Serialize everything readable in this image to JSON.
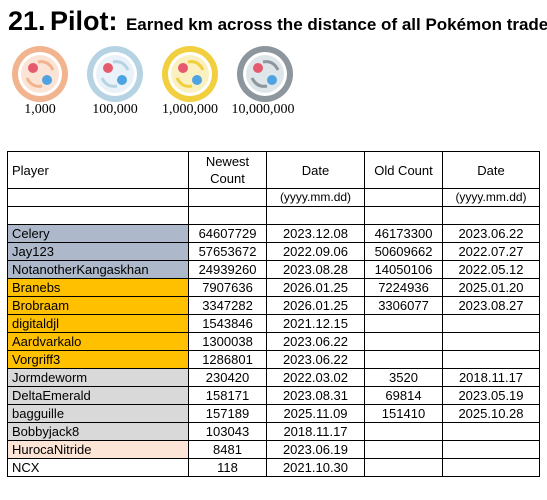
{
  "header": {
    "number": "21.",
    "name": "Pilot:",
    "description": "Earned km across the distance of all Pokémon trades"
  },
  "medals": [
    {
      "tier": "bronze-medal-icon",
      "label": "1,000",
      "ring": "#f2b48e",
      "inner": "#fbe4d6"
    },
    {
      "tier": "silver-medal-icon",
      "label": "100,000",
      "ring": "#b6d3e4",
      "inner": "#e8f2f8"
    },
    {
      "tier": "gold-medal-icon",
      "label": "1,000,000",
      "ring": "#f2cf3e",
      "inner": "#fbf0c0"
    },
    {
      "tier": "platinum-medal-icon",
      "label": "10,000,000",
      "ring": "#8c969c",
      "inner": "#dfe6ea"
    }
  ],
  "table": {
    "headers": {
      "player": "Player",
      "newest_count": "Newest Count",
      "date1": "Date",
      "old_count": "Old Count",
      "date2": "Date"
    },
    "format_hint_1": "(yyyy.mm.dd)",
    "format_hint_2": "(yyyy.mm.dd)",
    "colors": {
      "platinum": "#adb9ca",
      "gold": "#ffc000",
      "silver": "#d9d9d9",
      "bronze": "#fce4d6",
      "none": "#ffffff"
    },
    "rows": [
      {
        "player": "Celery",
        "newest": "64607729",
        "date1": "2023.12.08",
        "old": "46173300",
        "date2": "2023.06.22",
        "tier": "platinum"
      },
      {
        "player": "Jay123",
        "newest": "57653672",
        "date1": "2022.09.06",
        "old": "50609662",
        "date2": "2022.07.27",
        "tier": "platinum"
      },
      {
        "player": "NotanotherKangaskhan",
        "newest": "24939260",
        "date1": "2023.08.28",
        "old": "14050106",
        "date2": "2022.05.12",
        "tier": "platinum"
      },
      {
        "player": "Branebs",
        "newest": "7907636",
        "date1": "2026.01.25",
        "old": "7224936",
        "date2": "2025.01.20",
        "tier": "gold"
      },
      {
        "player": "Brobraam",
        "newest": "3347282",
        "date1": "2026.01.25",
        "old": "3306077",
        "date2": "2023.08.27",
        "tier": "gold"
      },
      {
        "player": "digitaldjl",
        "newest": "1543846",
        "date1": "2021.12.15",
        "old": "",
        "date2": "",
        "tier": "gold"
      },
      {
        "player": "Aardvarkalo",
        "newest": "1300038",
        "date1": "2023.06.22",
        "old": "",
        "date2": "",
        "tier": "gold"
      },
      {
        "player": "Vorgriff3",
        "newest": "1286801",
        "date1": "2023.06.22",
        "old": "",
        "date2": "",
        "tier": "gold"
      },
      {
        "player": "Jormdeworm",
        "newest": "230420",
        "date1": "2022.03.02",
        "old": "3520",
        "date2": "2018.11.17",
        "tier": "silver"
      },
      {
        "player": "DeltaEmerald",
        "newest": "158171",
        "date1": "2023.08.31",
        "old": "69814",
        "date2": "2023.05.19",
        "tier": "silver"
      },
      {
        "player": "bagguille",
        "newest": "157189",
        "date1": "2025.11.09",
        "old": "151410",
        "date2": "2025.10.28",
        "tier": "silver"
      },
      {
        "player": "Bobbyjack8",
        "newest": "103043",
        "date1": "2018.11.17",
        "old": "",
        "date2": "",
        "tier": "silver"
      },
      {
        "player": "HurocaNitride",
        "newest": "8481",
        "date1": "2023.06.19",
        "old": "",
        "date2": "",
        "tier": "bronze"
      },
      {
        "player": "NCX",
        "newest": "118",
        "date1": "2021.10.30",
        "old": "",
        "date2": "",
        "tier": "none"
      }
    ]
  }
}
